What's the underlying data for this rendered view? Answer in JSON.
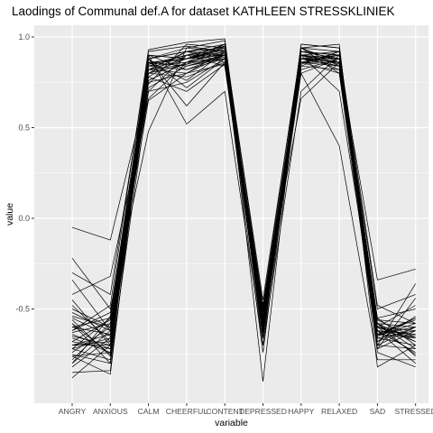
{
  "chart_data": {
    "type": "line",
    "title": "Laodings of Communal def.A for dataset KATHLEEN STRESSKLINIEK",
    "xlabel": "variable",
    "ylabel": "value",
    "categories": [
      "ANGRY",
      "ANXIOUS",
      "CALM",
      "CHEERFUL",
      "CONTENT",
      "DEPRESSED",
      "HAPPY",
      "RELAXED",
      "SAD",
      "STRESSED"
    ],
    "y_ticks": [
      -0.5,
      0.0,
      0.5,
      1.0
    ],
    "y_tick_labels": [
      "-0.5",
      "0.0",
      "0.5",
      "1.0"
    ],
    "ylim": [
      -1.0,
      1.05
    ],
    "grid": true,
    "line_color": "#000000",
    "panel_color": "#ebebeb",
    "grid_color": "#ffffff",
    "series": [
      {
        "values": [
          -0.72,
          -0.55,
          0.85,
          0.9,
          0.93,
          -0.55,
          0.92,
          0.88,
          -0.6,
          -0.62
        ]
      },
      {
        "values": [
          -0.65,
          -0.7,
          0.8,
          0.85,
          0.95,
          -0.6,
          0.88,
          0.9,
          -0.65,
          -0.55
        ]
      },
      {
        "values": [
          -0.8,
          -0.62,
          0.9,
          0.88,
          0.9,
          -0.5,
          0.9,
          0.85,
          -0.55,
          -0.7
        ]
      },
      {
        "values": [
          -0.58,
          -0.75,
          0.75,
          0.8,
          0.85,
          -0.65,
          0.85,
          0.92,
          -0.7,
          -0.6
        ]
      },
      {
        "values": [
          -0.7,
          -0.68,
          0.88,
          0.92,
          0.96,
          -0.45,
          0.94,
          0.8,
          -0.6,
          -0.65
        ]
      },
      {
        "values": [
          -0.5,
          -0.6,
          0.7,
          0.75,
          0.88,
          -0.55,
          0.8,
          0.88,
          -0.58,
          -0.72
        ]
      },
      {
        "values": [
          -0.75,
          -0.8,
          0.92,
          0.95,
          0.92,
          -0.7,
          0.96,
          0.94,
          -0.65,
          -0.58
        ]
      },
      {
        "values": [
          -0.62,
          -0.52,
          0.82,
          0.85,
          0.9,
          -0.5,
          0.86,
          0.86,
          -0.62,
          -0.66
        ]
      },
      {
        "values": [
          -0.68,
          -0.72,
          0.78,
          0.7,
          0.85,
          -0.6,
          0.9,
          0.82,
          -0.55,
          -0.5
        ]
      },
      {
        "values": [
          -0.55,
          -0.65,
          0.86,
          0.88,
          0.94,
          -0.58,
          0.92,
          0.9,
          -0.72,
          -0.62
        ]
      },
      {
        "values": [
          -0.78,
          -0.58,
          0.65,
          0.8,
          0.92,
          -0.52,
          0.88,
          0.84,
          -0.6,
          -0.75
        ]
      },
      {
        "values": [
          -0.45,
          -0.7,
          0.84,
          0.9,
          0.9,
          -0.62,
          0.82,
          0.88,
          -0.68,
          -0.6
        ]
      },
      {
        "values": [
          -0.72,
          -0.78,
          0.9,
          0.82,
          0.88,
          -0.66,
          0.9,
          0.92,
          -0.58,
          -0.68
        ]
      },
      {
        "values": [
          -0.6,
          -0.55,
          0.76,
          0.86,
          0.96,
          -0.48,
          0.94,
          0.86,
          -0.64,
          -0.56
        ]
      },
      {
        "values": [
          -0.82,
          -0.66,
          0.88,
          0.92,
          0.9,
          -0.56,
          0.86,
          0.9,
          -0.62,
          -0.64
        ]
      },
      {
        "values": [
          -0.52,
          -0.62,
          0.8,
          0.78,
          0.86,
          -0.6,
          0.88,
          0.84,
          -0.7,
          -0.72
        ]
      },
      {
        "values": [
          -0.66,
          -0.74,
          0.85,
          0.88,
          0.93,
          -0.52,
          0.9,
          0.88,
          -0.56,
          -0.58
        ]
      },
      {
        "values": [
          -0.74,
          -0.6,
          0.72,
          0.84,
          0.89,
          -0.64,
          0.84,
          0.82,
          -0.66,
          -0.7
        ]
      },
      {
        "values": [
          -0.48,
          -0.68,
          0.88,
          0.94,
          0.92,
          -0.58,
          0.92,
          0.9,
          -0.6,
          -0.48
        ]
      },
      {
        "values": [
          -0.7,
          -0.64,
          0.82,
          0.8,
          0.9,
          -0.54,
          0.88,
          0.86,
          -0.64,
          -0.66
        ]
      },
      {
        "values": [
          -0.63,
          -0.58,
          0.78,
          0.9,
          0.95,
          -0.62,
          0.94,
          0.92,
          -0.58,
          -0.6
        ]
      },
      {
        "values": [
          -0.56,
          -0.76,
          0.86,
          0.84,
          0.88,
          -0.5,
          0.86,
          0.84,
          -0.62,
          -0.74
        ]
      },
      {
        "values": [
          -0.05,
          -0.12,
          0.74,
          0.96,
          0.94,
          -0.56,
          0.9,
          0.88,
          -0.56,
          -0.66
        ]
      },
      {
        "values": [
          -0.22,
          -0.5,
          0.48,
          0.94,
          0.98,
          -0.62,
          0.96,
          0.94,
          -0.64,
          -0.55
        ]
      },
      {
        "values": [
          -0.3,
          -0.42,
          0.9,
          0.52,
          0.7,
          -0.7,
          0.7,
          0.9,
          -0.74,
          -0.82
        ]
      },
      {
        "values": [
          -0.85,
          -0.84,
          0.82,
          0.88,
          0.94,
          -0.9,
          0.94,
          0.96,
          -0.82,
          -0.7
        ]
      },
      {
        "values": [
          -0.76,
          -0.86,
          0.88,
          0.62,
          0.86,
          -0.66,
          0.8,
          0.4,
          -0.78,
          -0.78
        ]
      },
      {
        "values": [
          -0.42,
          -0.32,
          0.66,
          0.86,
          0.88,
          -0.48,
          0.66,
          0.86,
          -0.34,
          -0.28
        ]
      },
      {
        "values": [
          -0.62,
          -0.48,
          0.93,
          0.97,
          0.99,
          -0.6,
          0.92,
          0.88,
          -0.5,
          -0.42
        ]
      },
      {
        "values": [
          -0.88,
          -0.7,
          0.8,
          0.92,
          0.86,
          -0.74,
          0.88,
          0.84,
          -0.7,
          -0.36
        ]
      },
      {
        "values": [
          -0.68,
          -0.56,
          0.86,
          0.76,
          0.92,
          -0.52,
          0.9,
          0.7,
          -0.62,
          -0.8
        ]
      },
      {
        "values": [
          -0.58,
          -0.8,
          0.7,
          0.9,
          0.84,
          -0.62,
          0.84,
          0.92,
          -0.48,
          -0.58
        ]
      },
      {
        "values": [
          -0.34,
          -0.62,
          0.84,
          0.82,
          0.9,
          -0.58,
          0.86,
          0.8,
          -0.72,
          -0.44
        ]
      },
      {
        "values": [
          -0.8,
          -0.54,
          0.9,
          0.88,
          0.96,
          -0.64,
          0.92,
          0.9,
          -0.66,
          -0.62
        ]
      },
      {
        "values": [
          -0.64,
          -0.72,
          0.76,
          0.86,
          0.92,
          -0.5,
          0.88,
          0.86,
          -0.6,
          -0.68
        ]
      },
      {
        "values": [
          -0.72,
          -0.66,
          0.88,
          0.72,
          0.88,
          -0.56,
          0.9,
          0.88,
          -0.58,
          -0.76
        ]
      },
      {
        "values": [
          -0.54,
          -0.6,
          0.82,
          0.92,
          0.94,
          -0.6,
          0.94,
          0.84,
          -0.68,
          -0.54
        ]
      },
      {
        "values": [
          -0.76,
          -0.74,
          0.86,
          0.84,
          0.9,
          -0.54,
          0.86,
          0.9,
          -0.62,
          -0.64
        ]
      },
      {
        "values": [
          -0.6,
          -0.64,
          0.8,
          0.88,
          0.92,
          -0.58,
          0.9,
          0.86,
          -0.64,
          -0.6
        ]
      },
      {
        "values": [
          -0.7,
          -0.7,
          0.84,
          0.86,
          0.91,
          -0.56,
          0.88,
          0.88,
          -0.6,
          -0.66
        ]
      }
    ]
  }
}
